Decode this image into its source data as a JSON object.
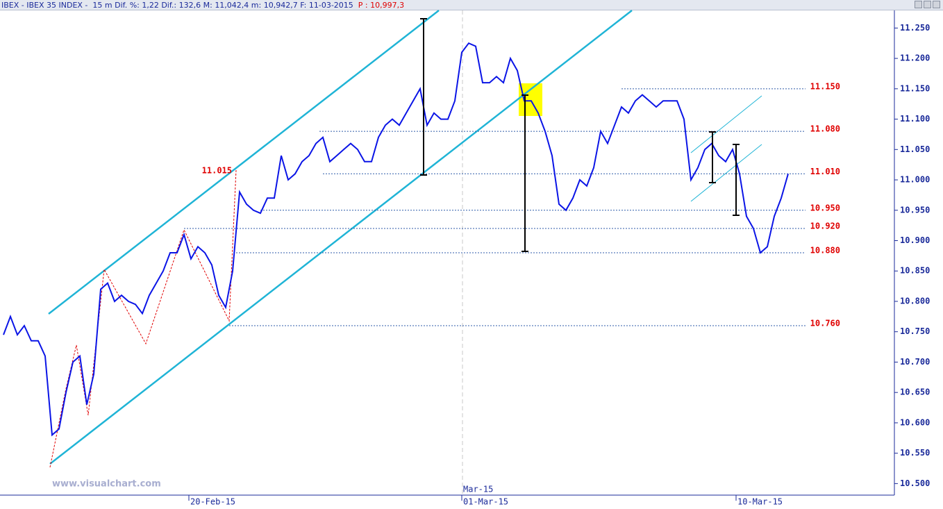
{
  "header": {
    "title": "IBEX - IBEX 35 INDEX -  15 m Dif. %: 1,22 Dif.: 132,6 M: 11,042,4 m: 10,942,7 F: 11-03-2015",
    "last": "P : 10,997,3"
  },
  "watermark": "www.visualchart.com",
  "chart_data": {
    "type": "line",
    "color": "#0a14e6",
    "values": [
      10745,
      10775,
      10745,
      10760,
      10735,
      10735,
      10710,
      10580,
      10590,
      10650,
      10700,
      10710,
      10630,
      10680,
      10820,
      10830,
      10800,
      10810,
      10800,
      10795,
      10780,
      10810,
      10830,
      10850,
      10880,
      10880,
      10910,
      10870,
      10890,
      10880,
      10860,
      10810,
      10790,
      10850,
      10980,
      10960,
      10950,
      10945,
      10970,
      10970,
      11040,
      11000,
      11010,
      11030,
      11040,
      11060,
      11070,
      11030,
      11040,
      11050,
      11060,
      11050,
      11030,
      11030,
      11070,
      11090,
      11100,
      11090,
      11110,
      11130,
      11150,
      11090,
      11110,
      11100,
      11100,
      11130,
      11210,
      11225,
      11220,
      11160,
      11160,
      11170,
      11160,
      11200,
      11180,
      11130,
      11130,
      11110,
      11080,
      11040,
      10960,
      10950,
      10970,
      11000,
      10990,
      11020,
      11080,
      11060,
      11090,
      11120,
      11110,
      11130,
      11140,
      11130,
      11120,
      11130,
      11130,
      11130,
      11100,
      11000,
      11020,
      11050,
      11060,
      11040,
      11030,
      11050,
      11010,
      10940,
      10920,
      10880,
      10890,
      10940,
      10970,
      11010
    ],
    "xlim": [
      -0.5,
      128.3
    ],
    "xticks": [
      {
        "value": 26.7,
        "label": "20-Feb-15"
      },
      {
        "value": 66,
        "label": "01-Mar-15"
      },
      {
        "value": 105.5,
        "label": "10-Mar-15"
      }
    ],
    "period_label": {
      "value": 66,
      "label": "Mar-15"
    },
    "ylim": [
      10481,
      11279
    ],
    "yticks": [
      {
        "value": 11250,
        "label": "11.250"
      },
      {
        "value": 11200,
        "label": "11.200"
      },
      {
        "value": 11150,
        "label": "11.150"
      },
      {
        "value": 11100,
        "label": "11.100"
      },
      {
        "value": 11050,
        "label": "11.050"
      },
      {
        "value": 11000,
        "label": "11.000"
      },
      {
        "value": 10950,
        "label": "10.950"
      },
      {
        "value": 10900,
        "label": "10.900"
      },
      {
        "value": 10850,
        "label": "10.850"
      },
      {
        "value": 10800,
        "label": "10.800"
      },
      {
        "value": 10750,
        "label": "10.750"
      },
      {
        "value": 10700,
        "label": "10.700"
      },
      {
        "value": 10650,
        "label": "10.650"
      },
      {
        "value": 10600,
        "label": "10.600"
      },
      {
        "value": 10550,
        "label": "10.550"
      },
      {
        "value": 10500,
        "label": "10.500"
      }
    ],
    "levels": [
      {
        "value": 11150,
        "label": "11.150"
      },
      {
        "value": 11080,
        "label": "11.080"
      },
      {
        "value": 11010,
        "label": "11.010"
      },
      {
        "value": 10950,
        "label": "10.950"
      },
      {
        "value": 10920,
        "label": "10.920"
      },
      {
        "value": 10880,
        "label": "10.880"
      },
      {
        "value": 10760,
        "label": "10.760"
      }
    ],
    "marked_level": {
      "value": 11015,
      "label": "11.015"
    }
  }
}
